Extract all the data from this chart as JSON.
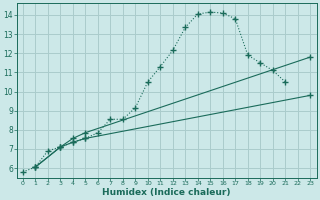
{
  "xlabel": "Humidex (Indice chaleur)",
  "ylabel": "",
  "bg_color": "#cce8e8",
  "grid_color": "#aacccc",
  "line_color": "#1a6b5a",
  "xlim": [
    -0.5,
    23.5
  ],
  "ylim": [
    5.5,
    14.6
  ],
  "xticks": [
    0,
    1,
    2,
    3,
    4,
    5,
    6,
    7,
    8,
    9,
    10,
    11,
    12,
    13,
    14,
    15,
    16,
    17,
    18,
    19,
    20,
    21,
    22,
    23
  ],
  "yticks": [
    6,
    7,
    8,
    9,
    10,
    11,
    12,
    13,
    14
  ],
  "series": [
    {
      "x": [
        0,
        1,
        2,
        3,
        4,
        5,
        6,
        7,
        8,
        9,
        10,
        11,
        12,
        13,
        14,
        15,
        16,
        17,
        18,
        19,
        20,
        21
      ],
      "y": [
        5.8,
        6.05,
        6.9,
        7.1,
        7.35,
        7.55,
        7.85,
        8.55,
        8.55,
        9.15,
        10.5,
        11.3,
        12.15,
        13.35,
        14.05,
        14.15,
        14.1,
        13.8,
        11.9,
        11.5,
        11.1,
        10.5
      ]
    },
    {
      "x": [
        1,
        3,
        4,
        5,
        23
      ],
      "y": [
        6.05,
        7.1,
        7.55,
        7.85,
        11.8
      ]
    },
    {
      "x": [
        1,
        3,
        4,
        5,
        23
      ],
      "y": [
        6.05,
        7.1,
        7.35,
        7.55,
        9.8
      ]
    }
  ]
}
